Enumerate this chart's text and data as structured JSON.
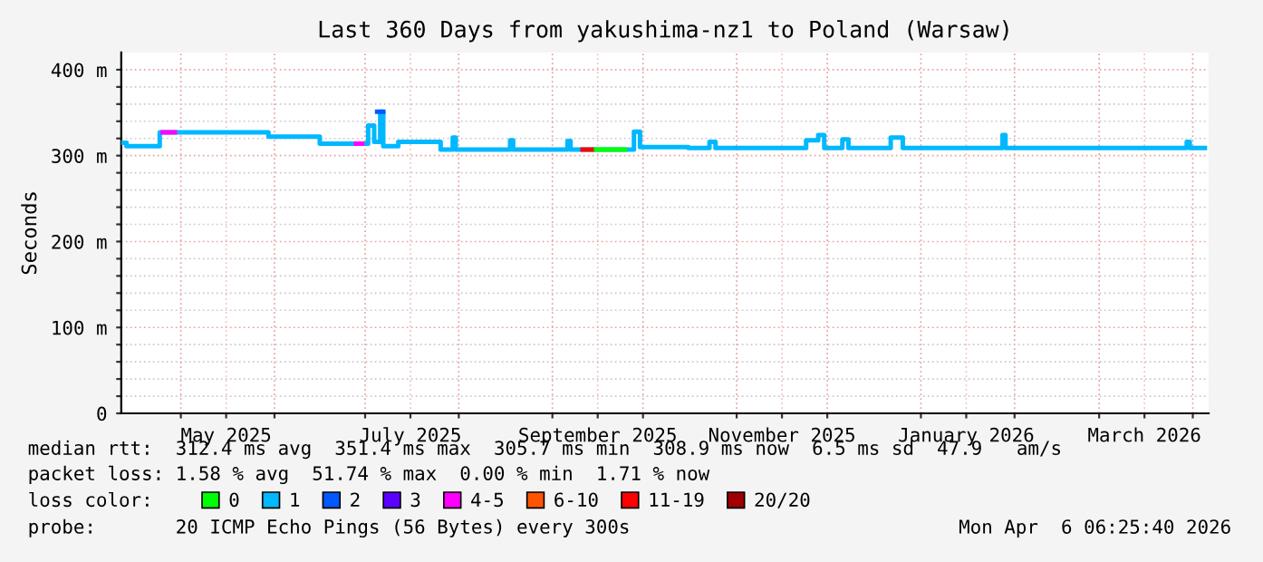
{
  "chart_data": {
    "type": "step",
    "title": "Last 360 Days from yakushima-nz1 to Poland (Warsaw)",
    "ylabel": "Seconds",
    "xlim": [
      "2025-04-11T06:25",
      "2026-04-06T06:25"
    ],
    "xticks": [
      {
        "value": "2025-05-01",
        "label": null
      },
      {
        "value": "2025-05-16",
        "label": "May 2025"
      },
      {
        "value": "2025-06-01",
        "label": null
      },
      {
        "value": "2025-07-01",
        "label": null
      },
      {
        "value": "2025-07-16",
        "label": "July 2025"
      },
      {
        "value": "2025-08-01",
        "label": null
      },
      {
        "value": "2025-09-01",
        "label": null
      },
      {
        "value": "2025-09-16",
        "label": "September 2025"
      },
      {
        "value": "2025-10-01",
        "label": null
      },
      {
        "value": "2025-11-01",
        "label": null
      },
      {
        "value": "2025-11-16",
        "label": "November 2025"
      },
      {
        "value": "2025-12-01",
        "label": null
      },
      {
        "value": "2026-01-01",
        "label": null
      },
      {
        "value": "2026-01-16",
        "label": "January 2026"
      },
      {
        "value": "2026-02-01",
        "label": null
      },
      {
        "value": "2026-03-01",
        "label": null
      },
      {
        "value": "2026-03-16",
        "label": "March 2026"
      },
      {
        "value": "2026-04-01",
        "label": null
      }
    ],
    "ylim": [
      0,
      420
    ],
    "yticks": [
      0,
      {
        "value": 20,
        "label": null
      },
      {
        "value": 40,
        "label": null
      },
      {
        "value": 60,
        "label": null
      },
      {
        "value": 80,
        "label": null
      },
      {
        "value": 100,
        "label": "100 m"
      },
      {
        "value": 120,
        "label": null
      },
      {
        "value": 140,
        "label": null
      },
      {
        "value": 160,
        "label": null
      },
      {
        "value": 180,
        "label": null
      },
      {
        "value": 200,
        "label": "200 m"
      },
      {
        "value": 220,
        "label": null
      },
      {
        "value": 240,
        "label": null
      },
      {
        "value": 260,
        "label": null
      },
      {
        "value": 280,
        "label": null
      },
      {
        "value": 300,
        "label": "300 m"
      },
      {
        "value": 320,
        "label": null
      },
      {
        "value": 340,
        "label": null
      },
      {
        "value": 360,
        "label": null
      },
      {
        "value": 380,
        "label": null
      },
      {
        "value": 400,
        "label": "400 m"
      }
    ],
    "grid": true,
    "legend": "bottom",
    "legend_title": "loss color:",
    "series": [
      {
        "name": "0",
        "color": "#00ff00",
        "x": [
          "2025-09-15",
          "2025-09-25"
        ],
        "values": [
          307,
          307
        ]
      },
      {
        "name": "1",
        "color": "#00b8ff",
        "x": [
          "2025-04-11T06:25",
          "2025-04-13",
          "2025-04-23",
          "2025-04-24",
          "2025-05-29",
          "2025-05-30",
          "2025-06-15",
          "2025-06-16",
          "2025-07-01",
          "2025-07-02",
          "2025-07-04",
          "2025-07-06",
          "2025-07-07",
          "2025-07-10",
          "2025-07-12",
          "2025-07-25",
          "2025-07-26",
          "2025-07-29",
          "2025-07-30",
          "2025-07-31",
          "2025-08-17",
          "2025-08-18",
          "2025-08-19",
          "2025-09-05",
          "2025-09-06",
          "2025-09-07",
          "2025-09-27",
          "2025-09-28",
          "2025-09-30",
          "2025-10-16",
          "2025-10-23",
          "2025-10-25",
          "2025-11-22",
          "2025-11-24",
          "2025-11-28",
          "2025-11-30",
          "2025-12-06",
          "2025-12-08",
          "2025-12-22",
          "2025-12-25",
          "2025-12-26",
          "2026-01-28",
          "2026-01-29",
          "2026-03-30",
          "2026-03-31",
          "2026-04-05"
        ],
        "values": [
          315,
          311,
          311,
          327,
          327,
          322,
          322,
          314,
          314,
          335,
          316,
          351,
          311,
          311,
          316,
          316,
          307,
          307,
          321,
          307,
          307,
          318,
          307,
          307,
          317,
          307,
          307,
          328,
          310,
          309,
          316,
          309,
          309,
          318,
          324,
          309,
          319,
          309,
          321,
          321,
          309,
          324,
          309,
          316,
          309,
          309
        ]
      },
      {
        "name": "2",
        "color": "#0059ff",
        "x": [
          "2025-07-05",
          "2025-07-07"
        ],
        "values": [
          351,
          351
        ]
      },
      {
        "name": "3",
        "color": "#5e00ff"
      },
      {
        "name": "4-5",
        "color": "#ff00ff",
        "x": [
          "2025-04-25",
          "2025-04-28",
          "2025-04-29",
          "2025-06-28",
          "2025-06-30"
        ],
        "values": [
          327,
          327,
          null,
          314,
          314
        ]
      },
      {
        "name": "6-10",
        "color": "#ff5500"
      },
      {
        "name": "11-19",
        "color": "#ff0000",
        "x": [
          "2025-09-11",
          "2025-09-14"
        ],
        "values": [
          307,
          307
        ]
      },
      {
        "name": "20/20",
        "color": "#a10000"
      }
    ],
    "annotations": [
      "median rtt:  312.4 ms avg  351.4 ms max  305.7 ms min  308.9 ms now  6.5 ms sd  47.9   am/s",
      "packet loss: 1.58 % avg  51.74 % max  0.00 % min  1.71 % now",
      "probe:       20 ICMP Echo Pings (56 Bytes) every 300s",
      "Mon Apr  6 06:25:40 2026"
    ]
  }
}
